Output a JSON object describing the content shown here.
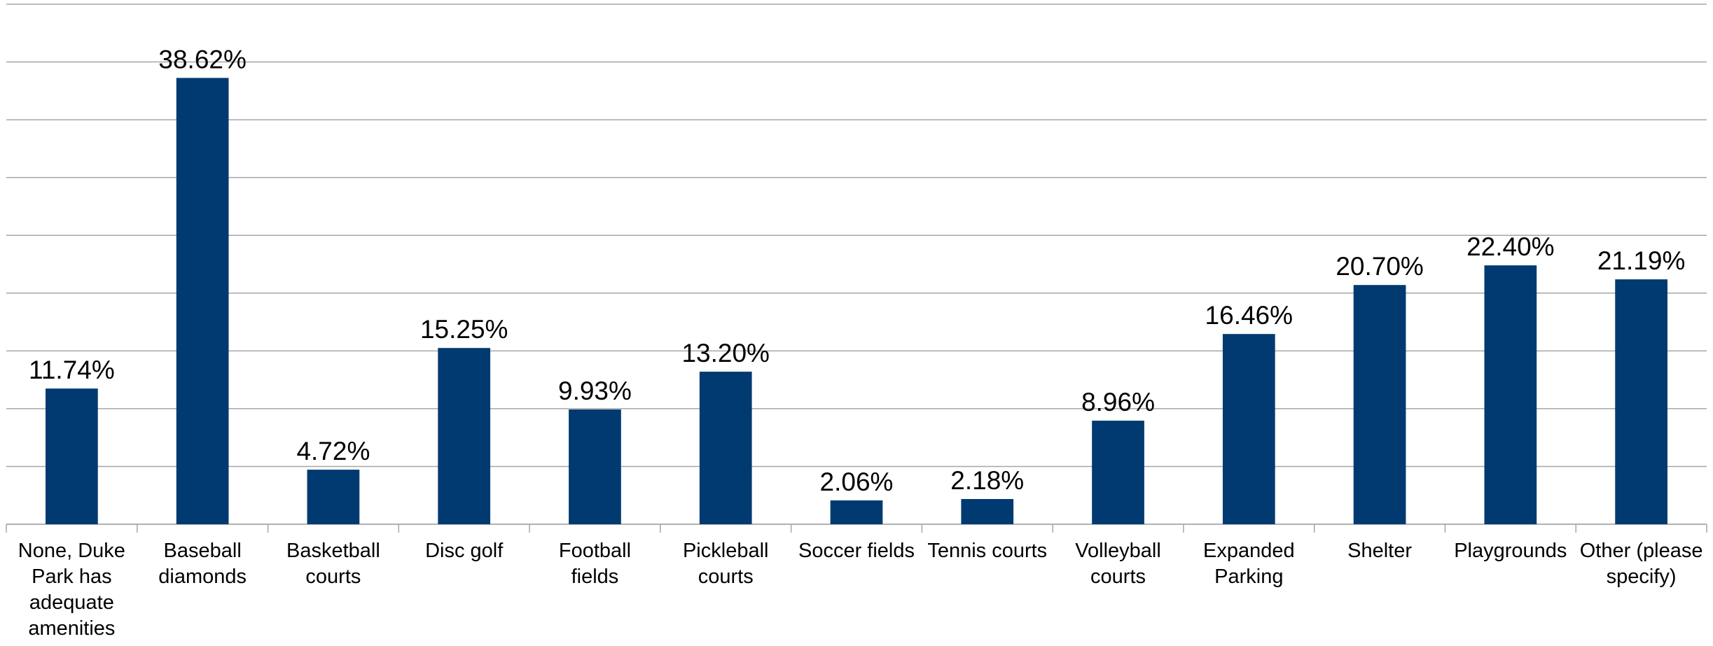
{
  "chart_data": {
    "type": "bar",
    "categories": [
      "None, Duke Park has adequate amenities",
      "Baseball diamonds",
      "Basketball courts",
      "Disc golf",
      "Football fields",
      "Pickleball courts",
      "Soccer fields",
      "Tennis courts",
      "Volleyball courts",
      "Expanded Parking",
      "Shelter",
      "Playgrounds",
      "Other (please specify)"
    ],
    "values": [
      11.74,
      38.62,
      4.72,
      15.25,
      9.93,
      13.2,
      2.06,
      2.18,
      8.96,
      16.46,
      20.7,
      22.4,
      21.19
    ],
    "value_labels": [
      "11.74%",
      "38.62%",
      "4.72%",
      "15.25%",
      "9.93%",
      "13.20%",
      "2.06%",
      "2.18%",
      "8.96%",
      "16.46%",
      "20.70%",
      "22.40%",
      "21.19%"
    ],
    "color": "#003a70",
    "ylim": [
      0,
      45
    ],
    "yticks": [
      0,
      5,
      10,
      15,
      20,
      25,
      30,
      35,
      40,
      45
    ],
    "grid": true
  }
}
